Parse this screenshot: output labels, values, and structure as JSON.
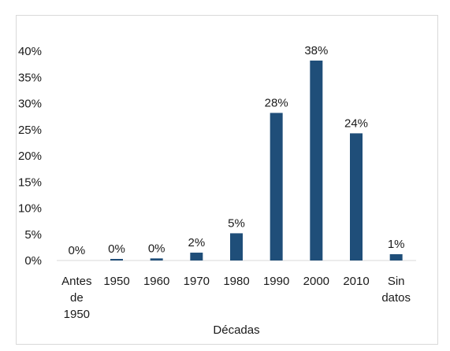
{
  "chart_data": {
    "type": "bar",
    "categories": [
      [
        "Antes",
        "de",
        "1950"
      ],
      [
        "1950"
      ],
      [
        "1960"
      ],
      [
        "1970"
      ],
      [
        "1980"
      ],
      [
        "1990"
      ],
      [
        "2000"
      ],
      [
        "2010"
      ],
      [
        "Sin",
        "datos"
      ]
    ],
    "values": [
      0,
      0.3,
      0.4,
      1.5,
      5.2,
      28.2,
      38.2,
      24.3,
      1.2
    ],
    "data_labels": [
      "0%",
      "0%",
      "0%",
      "2%",
      "5%",
      "28%",
      "38%",
      "24%",
      "1%"
    ],
    "y_ticks": [
      "0%",
      "5%",
      "10%",
      "15%",
      "20%",
      "25%",
      "30%",
      "35%",
      "40%"
    ],
    "ylim": [
      0,
      40
    ],
    "xlabel": "Décadas",
    "ylabel": "",
    "title": "",
    "grid": false,
    "legend": "none",
    "bar_color": "#1f4e79"
  }
}
